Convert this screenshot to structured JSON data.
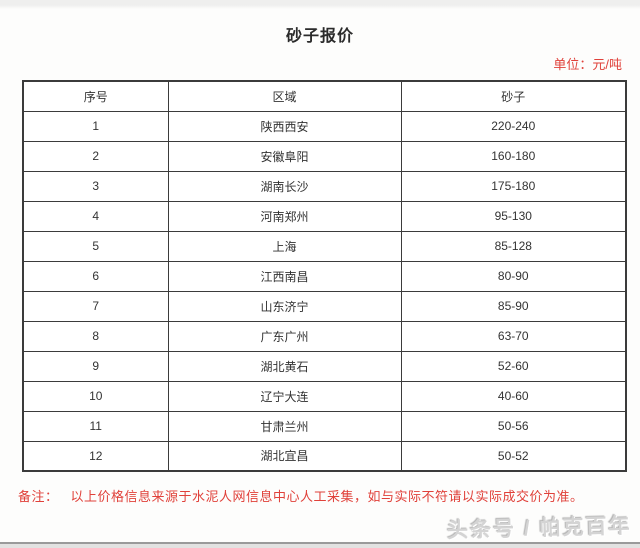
{
  "page": {
    "title": "砂子报价",
    "unit_label": "单位：元/吨",
    "note_prefix": "备注：",
    "note_body": "以上价格信息来源于水泥人网信息中心人工采集，如与实际不符请以实际成交价为准。",
    "watermark": "头条号 / 帕克百年"
  },
  "table": {
    "columns": [
      "序号",
      "区域",
      "砂子"
    ],
    "rows": [
      [
        "1",
        "陕西西安",
        "220-240"
      ],
      [
        "2",
        "安徽阜阳",
        "160-180"
      ],
      [
        "3",
        "湖南长沙",
        "175-180"
      ],
      [
        "4",
        "河南郑州",
        "95-130"
      ],
      [
        "5",
        "上海",
        "85-128"
      ],
      [
        "6",
        "江西南昌",
        "80-90"
      ],
      [
        "7",
        "山东济宁",
        "85-90"
      ],
      [
        "8",
        "广东广州",
        "63-70"
      ],
      [
        "9",
        "湖北黄石",
        "52-60"
      ],
      [
        "10",
        "辽宁大连",
        "40-60"
      ],
      [
        "11",
        "甘肃兰州",
        "50-56"
      ],
      [
        "12",
        "湖北宜昌",
        "50-52"
      ]
    ]
  },
  "colors": {
    "accent_red": "#e0413a",
    "table_border": "#3b3b3b",
    "body_text": "#333333",
    "watermark_gray": "#d4d4d4"
  }
}
